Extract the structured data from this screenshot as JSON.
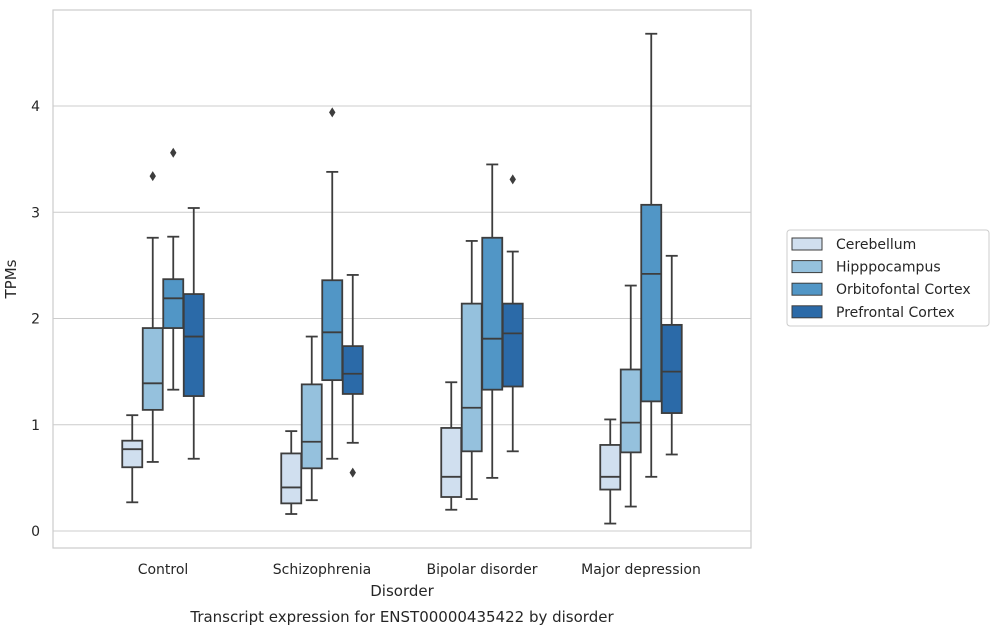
{
  "chart_data": {
    "type": "boxplot",
    "title": "Transcript expression for ENST00000435422 by disorder",
    "xlabel": "Disorder",
    "ylabel": "TPMs",
    "ylim": [
      -0.15,
      4.9
    ],
    "yticks": [
      0,
      1,
      2,
      3,
      4
    ],
    "categories": [
      "Control",
      "Schizophrenia",
      "Bipolar disorder",
      "Major depression"
    ],
    "grid": true,
    "legend_position": "right",
    "series": [
      {
        "name": "Cerebellum",
        "color": "#d0dfef",
        "boxes": [
          {
            "whislo": 0.27,
            "q1": 0.6,
            "med": 0.77,
            "q3": 0.85,
            "whishi": 1.09,
            "fliers": []
          },
          {
            "whislo": 0.16,
            "q1": 0.26,
            "med": 0.41,
            "q3": 0.73,
            "whishi": 0.94,
            "fliers": []
          },
          {
            "whislo": 0.2,
            "q1": 0.32,
            "med": 0.51,
            "q3": 0.97,
            "whishi": 1.4,
            "fliers": []
          },
          {
            "whislo": 0.07,
            "q1": 0.39,
            "med": 0.51,
            "q3": 0.81,
            "whishi": 1.05,
            "fliers": []
          }
        ]
      },
      {
        "name": "Hipppocampus",
        "color": "#95c1dd",
        "boxes": [
          {
            "whislo": 0.65,
            "q1": 1.14,
            "med": 1.39,
            "q3": 1.91,
            "whishi": 2.76,
            "fliers": [
              3.34
            ]
          },
          {
            "whislo": 0.29,
            "q1": 0.59,
            "med": 0.84,
            "q3": 1.38,
            "whishi": 1.83,
            "fliers": []
          },
          {
            "whislo": 0.3,
            "q1": 0.75,
            "med": 1.16,
            "q3": 2.14,
            "whishi": 2.73,
            "fliers": []
          },
          {
            "whislo": 0.23,
            "q1": 0.74,
            "med": 1.02,
            "q3": 1.52,
            "whishi": 2.31,
            "fliers": []
          }
        ]
      },
      {
        "name": "Orbitofontal Cortex",
        "color": "#5196c6",
        "boxes": [
          {
            "whislo": 1.33,
            "q1": 1.91,
            "med": 2.19,
            "q3": 2.37,
            "whishi": 2.77,
            "fliers": [
              3.56
            ]
          },
          {
            "whislo": 0.68,
            "q1": 1.42,
            "med": 1.87,
            "q3": 2.36,
            "whishi": 3.38,
            "fliers": [
              3.94
            ]
          },
          {
            "whislo": 0.5,
            "q1": 1.33,
            "med": 1.81,
            "q3": 2.76,
            "whishi": 3.45,
            "fliers": []
          },
          {
            "whislo": 0.51,
            "q1": 1.22,
            "med": 2.42,
            "q3": 3.07,
            "whishi": 4.68,
            "fliers": []
          }
        ]
      },
      {
        "name": "Prefrontal Cortex",
        "color": "#2b6aa8",
        "boxes": [
          {
            "whislo": 0.68,
            "q1": 1.27,
            "med": 1.83,
            "q3": 2.23,
            "whishi": 3.04,
            "fliers": []
          },
          {
            "whislo": 0.83,
            "q1": 1.29,
            "med": 1.48,
            "q3": 1.74,
            "whishi": 2.41,
            "fliers": [
              0.55
            ]
          },
          {
            "whislo": 0.75,
            "q1": 1.36,
            "med": 1.86,
            "q3": 2.14,
            "whishi": 2.63,
            "fliers": [
              3.31
            ]
          },
          {
            "whislo": 0.72,
            "q1": 1.11,
            "med": 1.5,
            "q3": 1.94,
            "whishi": 2.59,
            "fliers": []
          }
        ]
      }
    ]
  }
}
